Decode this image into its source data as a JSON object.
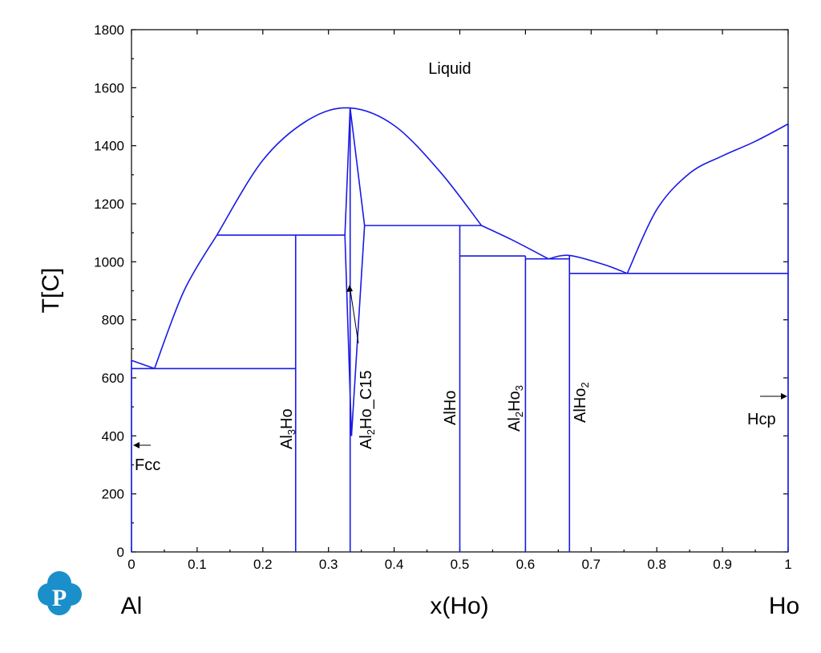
{
  "chart_data": {
    "type": "line",
    "title": "",
    "xlabel": "x(Ho)",
    "ylabel": "T[C]",
    "xlim": [
      0,
      1
    ],
    "ylim": [
      0,
      1800
    ],
    "x_ticks": [
      "0",
      "0.1",
      "0.2",
      "0.3",
      "0.4",
      "0.5",
      "0.6",
      "0.7",
      "0.8",
      "0.9",
      "1"
    ],
    "y_ticks": [
      "0",
      "200",
      "400",
      "600",
      "800",
      "1000",
      "1200",
      "1400",
      "1600",
      "1800"
    ],
    "component_left": "Al",
    "component_right": "Ho",
    "line_color": "#1a1ae6",
    "liquidus": [
      {
        "x": [
          0,
          0.035
        ],
        "y": [
          660,
          632
        ]
      },
      {
        "x": [
          0.035,
          0.08,
          0.13
        ],
        "y": [
          632,
          900,
          1092
        ]
      },
      {
        "x": [
          0.13,
          0.2,
          0.27,
          0.333,
          0.4,
          0.47,
          0.533
        ],
        "y": [
          1092,
          1350,
          1490,
          1530,
          1470,
          1310,
          1125
        ]
      },
      {
        "x": [
          0.533,
          0.58,
          0.635
        ],
        "y": [
          1125,
          1075,
          1010
        ]
      },
      {
        "x": [
          0.635,
          0.667,
          0.72,
          0.755
        ],
        "y": [
          1010,
          1022,
          990,
          960
        ]
      },
      {
        "x": [
          0.755,
          0.8,
          0.85,
          0.9,
          0.95,
          1.0
        ],
        "y": [
          960,
          1180,
          1305,
          1365,
          1415,
          1475
        ]
      }
    ],
    "al2ho_phase_boundary": {
      "left": {
        "x": [
          0.333,
          0.325,
          0.335
        ],
        "y": [
          1530,
          1092,
          400
        ]
      },
      "right": {
        "x": [
          0.333,
          0.355,
          0.335
        ],
        "y": [
          1530,
          1125,
          400
        ]
      }
    },
    "invariant_lines": [
      {
        "T": 632,
        "x_from": 0,
        "x_to": 0.25
      },
      {
        "T": 1092,
        "x_from": 0.13,
        "x_to": 0.325
      },
      {
        "T": 1125,
        "x_from": 0.355,
        "x_to": 0.533
      },
      {
        "T": 1020,
        "x_from": 0.5,
        "x_to": 0.6
      },
      {
        "T": 1010,
        "x_from": 0.6,
        "x_to": 0.667
      },
      {
        "T": 960,
        "x_from": 0.667,
        "x_to": 1.0
      }
    ],
    "compound_lines": [
      {
        "name": "Al3Ho",
        "x": 0.25,
        "T_top": 1092
      },
      {
        "name": "Al2Ho_C15",
        "x": 0.333,
        "T_top": 1530
      },
      {
        "name": "AlHo",
        "x": 0.5,
        "T_top": 1125
      },
      {
        "name": "Al2Ho3",
        "x": 0.6,
        "T_top": 1020
      },
      {
        "name": "AlHo2",
        "x": 0.667,
        "T_top": 1022
      }
    ],
    "labels": {
      "liquid": "Liquid",
      "fcc": "Fcc",
      "hcp": "Hcp",
      "al3ho": {
        "main": "Al",
        "sub": "3",
        "rest": "Ho"
      },
      "al2ho_c15": {
        "main": "Al",
        "sub": "2",
        "rest": "Ho_C15"
      },
      "alho": "AlHo",
      "al2ho3": {
        "main": "Al",
        "sub": "2",
        "rest": "Ho",
        "sub2": "3"
      },
      "alho2": {
        "main": "AlHo",
        "sub": "2"
      }
    },
    "grid": false,
    "legend": "none"
  },
  "logo": {
    "letter": "P",
    "color": "#1a8fc9"
  }
}
